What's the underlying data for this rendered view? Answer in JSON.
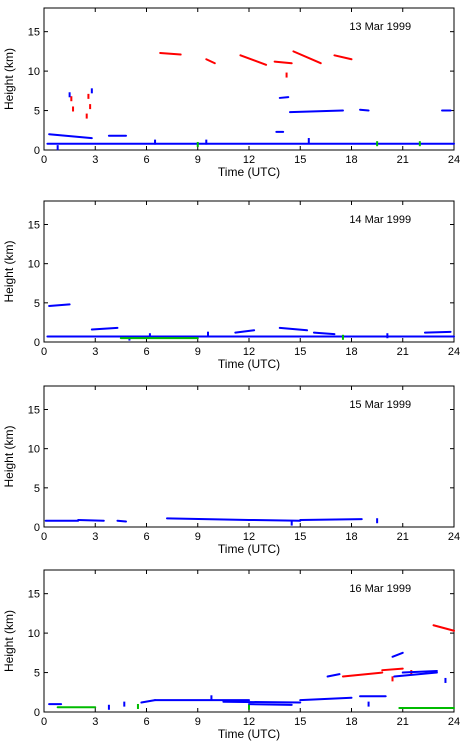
{
  "chart_data": [
    {
      "type": "scatter",
      "title": "13 Mar 1999",
      "xlabel": "Time (UTC)",
      "ylabel": "Height (km)",
      "xlim": [
        0,
        24
      ],
      "ylim": [
        0,
        18
      ],
      "xticks": [
        0,
        3,
        6,
        9,
        12,
        15,
        18,
        21,
        24
      ],
      "yticks": [
        0,
        5,
        10,
        15
      ],
      "series": [
        {
          "color": "#ff0000",
          "segments": [
            [
              6.8,
              12.3,
              8.0,
              12.1
            ],
            [
              9.5,
              11.5,
              10.0,
              11.0
            ],
            [
              11.5,
              12.0,
              13.0,
              10.8
            ],
            [
              13.5,
              11.2,
              14.5,
              11.0
            ],
            [
              14.6,
              12.5,
              16.2,
              11.0
            ],
            [
              17.0,
              12.0,
              18.0,
              11.5
            ]
          ],
          "points": [
            [
              1.6,
              6.5
            ],
            [
              1.7,
              5.2
            ],
            [
              2.6,
              6.8
            ],
            [
              2.7,
              5.5
            ],
            [
              2.5,
              4.3
            ],
            [
              14.2,
              9.5
            ]
          ]
        },
        {
          "color": "#0000ff",
          "segments": [
            [
              0.2,
              0.8,
              24.0,
              0.8
            ],
            [
              0.3,
              2.0,
              2.8,
              1.5
            ],
            [
              3.8,
              1.8,
              4.8,
              1.8
            ],
            [
              13.8,
              6.6,
              14.3,
              6.7
            ],
            [
              14.4,
              4.8,
              17.5,
              5.0
            ],
            [
              18.5,
              5.1,
              19.0,
              5.0
            ],
            [
              23.3,
              5.0,
              23.8,
              5.0
            ],
            [
              13.6,
              2.3,
              14.0,
              2.3
            ]
          ],
          "points": [
            [
              0.8,
              0.3
            ],
            [
              1.5,
              7.0
            ],
            [
              2.8,
              7.5
            ],
            [
              6.5,
              1.0
            ],
            [
              9.5,
              1.0
            ],
            [
              15.5,
              1.2
            ]
          ]
        },
        {
          "color": "#00bb00",
          "segments": [],
          "points": [
            [
              9.0,
              0.7
            ],
            [
              19.5,
              0.8
            ],
            [
              22.0,
              0.8
            ]
          ]
        }
      ]
    },
    {
      "type": "scatter",
      "title": "14 Mar 1999",
      "xlabel": "Time (UTC)",
      "ylabel": "Height (km)",
      "xlim": [
        0,
        24
      ],
      "ylim": [
        0,
        18
      ],
      "xticks": [
        0,
        3,
        6,
        9,
        12,
        15,
        18,
        21,
        24
      ],
      "yticks": [
        0,
        5,
        10,
        15
      ],
      "series": [
        {
          "color": "#0000ff",
          "segments": [
            [
              0.3,
              4.6,
              1.5,
              4.8
            ],
            [
              0.2,
              0.7,
              24.0,
              0.7
            ],
            [
              2.8,
              1.6,
              4.3,
              1.8
            ],
            [
              11.2,
              1.2,
              12.3,
              1.5
            ],
            [
              13.8,
              1.8,
              15.4,
              1.5
            ],
            [
              15.8,
              1.2,
              17.0,
              1.0
            ],
            [
              22.3,
              1.2,
              23.8,
              1.3
            ]
          ],
          "points": [
            [
              5.0,
              0.5
            ],
            [
              6.2,
              0.8
            ],
            [
              9.6,
              1.0
            ],
            [
              20.1,
              0.8
            ]
          ]
        },
        {
          "color": "#00bb00",
          "segments": [
            [
              4.5,
              0.5,
              9.0,
              0.5
            ]
          ],
          "points": [
            [
              17.5,
              0.6
            ]
          ]
        }
      ]
    },
    {
      "type": "scatter",
      "title": "15 Mar 1999",
      "xlabel": "Time (UTC)",
      "ylabel": "Height (km)",
      "xlim": [
        0,
        24
      ],
      "ylim": [
        0,
        18
      ],
      "xticks": [
        0,
        3,
        6,
        9,
        12,
        15,
        18,
        21,
        24
      ],
      "yticks": [
        0,
        5,
        10,
        15
      ],
      "series": [
        {
          "color": "#0000ff",
          "segments": [
            [
              0.1,
              0.8,
              2.0,
              0.8
            ],
            [
              2.0,
              0.9,
              3.5,
              0.8
            ],
            [
              4.3,
              0.8,
              4.8,
              0.7
            ],
            [
              7.2,
              1.1,
              12.0,
              0.9
            ],
            [
              12.0,
              0.9,
              15.0,
              0.8
            ],
            [
              15.0,
              0.9,
              18.6,
              1.0
            ]
          ],
          "points": [
            [
              14.5,
              0.5
            ],
            [
              19.5,
              0.8
            ]
          ]
        }
      ]
    },
    {
      "type": "scatter",
      "title": "16 Mar 1999",
      "xlabel": "Time (UTC)",
      "ylabel": "Height (km)",
      "xlim": [
        0,
        24
      ],
      "ylim": [
        0,
        18
      ],
      "xticks": [
        0,
        3,
        6,
        9,
        12,
        15,
        18,
        21,
        24
      ],
      "yticks": [
        0,
        5,
        10,
        15
      ],
      "series": [
        {
          "color": "#ff0000",
          "segments": [
            [
              17.5,
              4.5,
              19.8,
              5.0
            ],
            [
              19.8,
              5.3,
              21.0,
              5.5
            ],
            [
              22.8,
              11.0,
              24.0,
              10.3
            ]
          ],
          "points": [
            [
              20.4,
              4.2
            ],
            [
              21.5,
              5.0
            ]
          ]
        },
        {
          "color": "#0000ff",
          "segments": [
            [
              0.3,
              1.0,
              1.0,
              1.0
            ],
            [
              5.7,
              1.2,
              6.5,
              1.5
            ],
            [
              6.5,
              1.5,
              12.0,
              1.5
            ],
            [
              10.5,
              1.3,
              15.0,
              1.2
            ],
            [
              12.0,
              1.0,
              14.5,
              0.9
            ],
            [
              15.0,
              1.5,
              18.0,
              1.8
            ],
            [
              18.5,
              2.0,
              20.0,
              2.0
            ],
            [
              16.6,
              4.5,
              17.3,
              4.8
            ],
            [
              20.4,
              7.0,
              21.0,
              7.5
            ],
            [
              21.0,
              5.0,
              23.0,
              5.2
            ],
            [
              20.5,
              4.5,
              23.0,
              5.0
            ]
          ],
          "points": [
            [
              3.8,
              0.6
            ],
            [
              4.7,
              1.0
            ],
            [
              9.8,
              1.8
            ],
            [
              19.0,
              1.0
            ],
            [
              23.5,
              4.0
            ]
          ]
        },
        {
          "color": "#00bb00",
          "segments": [
            [
              0.8,
              0.6,
              3.0,
              0.6
            ],
            [
              20.8,
              0.5,
              24.0,
              0.5
            ]
          ],
          "points": [
            [
              5.5,
              0.7
            ],
            [
              12.0,
              0.6
            ]
          ]
        }
      ]
    }
  ]
}
